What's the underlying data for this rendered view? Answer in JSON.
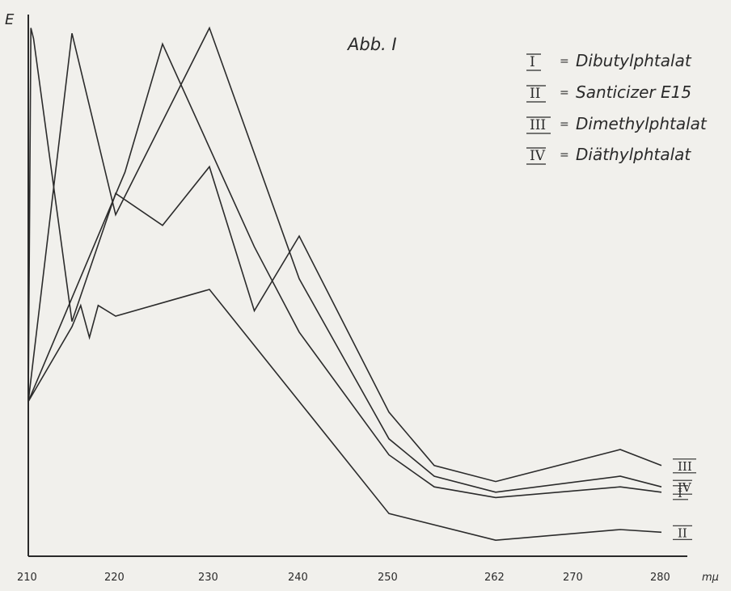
{
  "chart_data": {
    "type": "line",
    "title": "Abb. I",
    "ylabel": "E",
    "xlabel": "mμ",
    "x_ticks": [
      "210",
      "220",
      "230",
      "240",
      "250",
      "262",
      "270",
      "280"
    ],
    "y_axis_ticks": false,
    "grid": false,
    "legend_position": "top-right",
    "legend": [
      {
        "key": "I",
        "separator": "=",
        "label": "Dibutylphtalat"
      },
      {
        "key": "II",
        "separator": "=",
        "label": "Santicizer E15"
      },
      {
        "key": "III",
        "separator": "=",
        "label": "Dimethylphtalat"
      },
      {
        "key": "IV",
        "separator": "=",
        "label": "Diäthylphtalat"
      }
    ],
    "series": [
      {
        "name": "I",
        "points": [
          [
            210,
            0.29
          ],
          [
            221,
            0.72
          ],
          [
            225,
            0.96
          ],
          [
            235,
            0.58
          ],
          [
            240,
            0.42
          ],
          [
            250,
            0.19
          ],
          [
            254,
            0.13
          ],
          [
            262,
            0.11
          ],
          [
            276,
            0.13
          ],
          [
            280,
            0.12
          ]
        ]
      },
      {
        "name": "II",
        "points": [
          [
            210,
            0.29
          ],
          [
            215,
            0.43
          ],
          [
            216,
            0.47
          ],
          [
            217,
            0.41
          ],
          [
            218,
            0.47
          ],
          [
            220,
            0.45
          ],
          [
            226,
            0.48
          ],
          [
            230,
            0.5
          ],
          [
            240,
            0.29
          ],
          [
            250,
            0.08
          ],
          [
            262,
            0.03
          ],
          [
            276,
            0.05
          ],
          [
            280,
            0.045
          ]
        ]
      },
      {
        "name": "III",
        "points": [
          [
            210,
            0.29
          ],
          [
            210.3,
            0.99
          ],
          [
            210.6,
            0.97
          ],
          [
            215,
            0.44
          ],
          [
            220,
            0.68
          ],
          [
            225,
            0.62
          ],
          [
            230,
            0.73
          ],
          [
            235,
            0.46
          ],
          [
            240,
            0.6
          ],
          [
            250,
            0.27
          ],
          [
            254,
            0.17
          ],
          [
            262,
            0.14
          ],
          [
            276,
            0.2
          ],
          [
            280,
            0.17
          ]
        ]
      },
      {
        "name": "IV",
        "points": [
          [
            210,
            0.29
          ],
          [
            215,
            0.98
          ],
          [
            220,
            0.64
          ],
          [
            230,
            0.99
          ],
          [
            240,
            0.52
          ],
          [
            250,
            0.22
          ],
          [
            254,
            0.15
          ],
          [
            262,
            0.12
          ],
          [
            276,
            0.15
          ],
          [
            280,
            0.13
          ]
        ]
      }
    ]
  },
  "figure_label": "Abb. I",
  "colors": {
    "paper": "#f1f0ec",
    "ink": "#2b2b2b"
  }
}
